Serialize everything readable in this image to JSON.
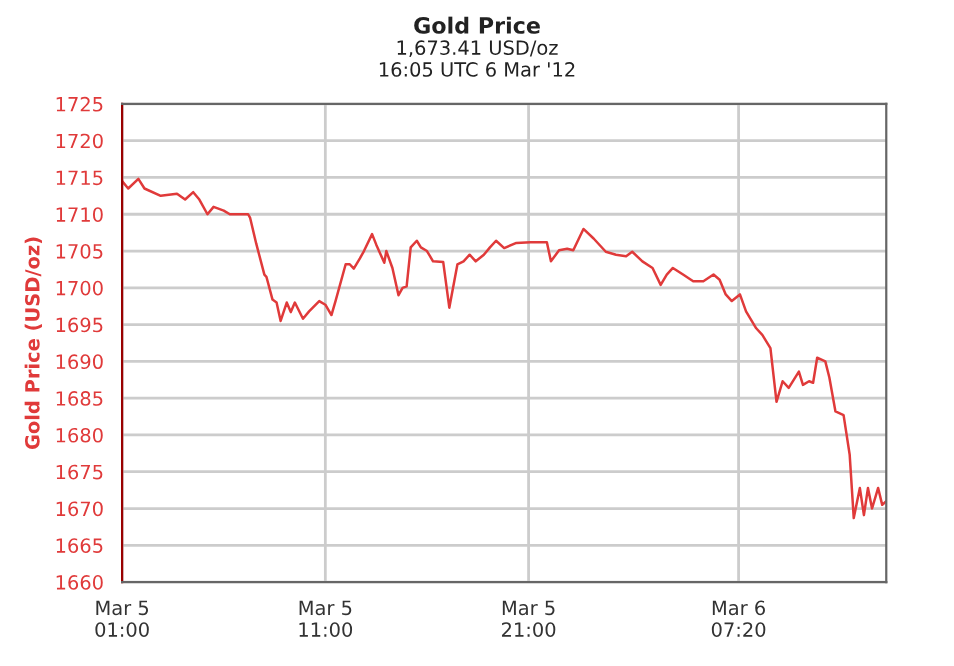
{
  "chart_data": {
    "type": "line",
    "title": "Gold Price",
    "subtitle": "1,673.41 USD/oz\n16:05 UTC 6 Mar '12",
    "ylabel": "Gold Price (USD/oz)",
    "x": [
      "2012-03-05T01:00",
      "2012-03-05T01:18",
      "2012-03-05T01:48",
      "2012-03-05T02:06",
      "2012-03-05T02:54",
      "2012-03-05T03:42",
      "2012-03-05T04:06",
      "2012-03-05T04:30",
      "2012-03-05T04:48",
      "2012-03-05T05:12",
      "2012-03-05T05:30",
      "2012-03-05T06:00",
      "2012-03-05T06:18",
      "2012-03-05T06:42",
      "2012-03-05T07:12",
      "2012-03-05T07:18",
      "2012-03-05T07:36",
      "2012-03-05T08:00",
      "2012-03-05T08:06",
      "2012-03-05T08:24",
      "2012-03-05T08:36",
      "2012-03-05T08:48",
      "2012-03-05T09:06",
      "2012-03-05T09:18",
      "2012-03-05T09:30",
      "2012-03-05T09:54",
      "2012-03-05T10:12",
      "2012-03-05T10:42",
      "2012-03-05T11:00",
      "2012-03-05T11:18",
      "2012-03-05T11:30",
      "2012-03-05T12:00",
      "2012-03-05T12:12",
      "2012-03-05T12:24",
      "2012-03-05T12:42",
      "2012-03-05T12:54",
      "2012-03-05T13:18",
      "2012-03-05T13:30",
      "2012-03-05T13:54",
      "2012-03-05T14:00",
      "2012-03-05T14:18",
      "2012-03-05T14:36",
      "2012-03-05T14:48",
      "2012-03-05T15:00",
      "2012-03-05T15:12",
      "2012-03-05T15:30",
      "2012-03-05T15:42",
      "2012-03-05T16:00",
      "2012-03-05T16:18",
      "2012-03-05T16:48",
      "2012-03-05T17:06",
      "2012-03-05T17:30",
      "2012-03-05T17:48",
      "2012-03-05T18:06",
      "2012-03-05T18:24",
      "2012-03-05T18:48",
      "2012-03-05T19:06",
      "2012-03-05T19:24",
      "2012-03-05T19:48",
      "2012-03-05T20:24",
      "2012-03-05T21:06",
      "2012-03-05T21:54",
      "2012-03-05T22:06",
      "2012-03-05T22:30",
      "2012-03-05T22:54",
      "2012-03-05T23:12",
      "2012-03-05T23:42",
      "2012-03-06T00:12",
      "2012-03-06T00:48",
      "2012-03-06T01:18",
      "2012-03-06T01:48",
      "2012-03-06T02:06",
      "2012-03-06T02:36",
      "2012-03-06T03:06",
      "2012-03-06T03:30",
      "2012-03-06T03:48",
      "2012-03-06T04:06",
      "2012-03-06T04:36",
      "2012-03-06T05:06",
      "2012-03-06T05:36",
      "2012-03-06T06:06",
      "2012-03-06T06:24",
      "2012-03-06T06:42",
      "2012-03-06T07:00",
      "2012-03-06T07:24",
      "2012-03-06T07:42",
      "2012-03-06T08:12",
      "2012-03-06T08:30",
      "2012-03-06T08:54",
      "2012-03-06T09:12",
      "2012-03-06T09:30",
      "2012-03-06T09:48",
      "2012-03-06T10:18",
      "2012-03-06T10:30",
      "2012-03-06T10:48",
      "2012-03-06T11:00",
      "2012-03-06T11:12",
      "2012-03-06T11:36",
      "2012-03-06T11:48",
      "2012-03-06T12:06",
      "2012-03-06T12:30",
      "2012-03-06T12:48",
      "2012-03-06T13:00",
      "2012-03-06T13:18",
      "2012-03-06T13:30",
      "2012-03-06T13:42",
      "2012-03-06T13:54",
      "2012-03-06T14:12",
      "2012-03-06T14:24",
      "2012-03-06T14:36"
    ],
    "series": [
      {
        "color": "#e03a3a",
        "values": [
          1714.5,
          1713.5,
          1714.8,
          1713.5,
          1712.5,
          1712.8,
          1712,
          1713,
          1712,
          1710,
          1711,
          1710.5,
          1710,
          1710,
          1710,
          1709.5,
          1706,
          1701.8,
          1701.5,
          1698.4,
          1698,
          1695.5,
          1698,
          1696.7,
          1698,
          1695.8,
          1696.8,
          1698.2,
          1697.7,
          1696.3,
          1698.2,
          1703.2,
          1703.2,
          1702.6,
          1704,
          1705,
          1707.3,
          1705.9,
          1703.4,
          1705,
          1702.7,
          1699,
          1700,
          1700.2,
          1705.5,
          1706.4,
          1705.5,
          1705,
          1703.6,
          1703.5,
          1697.3,
          1703.2,
          1703.6,
          1704.5,
          1703.6,
          1704.5,
          1705.5,
          1706.4,
          1705.4,
          1706.1,
          1706.2,
          1706.2,
          1703.6,
          1705.1,
          1705.3,
          1705.1,
          1708,
          1706.7,
          1704.9,
          1704.5,
          1704.3,
          1704.9,
          1703.6,
          1702.7,
          1700.4,
          1701.8,
          1702.7,
          1701.8,
          1700.9,
          1700.9,
          1701.8,
          1701.1,
          1699.1,
          1698.2,
          1699.1,
          1696.8,
          1694.5,
          1693.6,
          1691.8,
          1684.5,
          1687.3,
          1686.4,
          1688.6,
          1686.8,
          1687.3,
          1687.1,
          1690.5,
          1690,
          1687.8,
          1683.2,
          1682.7,
          1677.3,
          1668.7,
          1672.8,
          1669.1,
          1672.8,
          1670,
          1672.8,
          1670.5,
          1671
        ]
      }
    ],
    "xlim": [
      "2012-03-05T01:00",
      "2012-03-06T14:36"
    ],
    "xticks": [
      {
        "value": "2012-03-05T01:00",
        "label": "Mar 5\n01:00"
      },
      {
        "value": "2012-03-05T11:00",
        "label": "Mar 5\n11:00"
      },
      {
        "value": "2012-03-05T21:00",
        "label": "Mar 5\n21:00"
      },
      {
        "value": "2012-03-06T07:20",
        "label": "Mar 6\n07:20"
      }
    ],
    "ylim": [
      1660,
      1725
    ],
    "yticks": [
      1660,
      1665,
      1670,
      1675,
      1680,
      1685,
      1690,
      1695,
      1700,
      1705,
      1710,
      1715,
      1720,
      1725
    ],
    "grid": true,
    "legend": false,
    "marker": "none",
    "line_style": "solid"
  }
}
